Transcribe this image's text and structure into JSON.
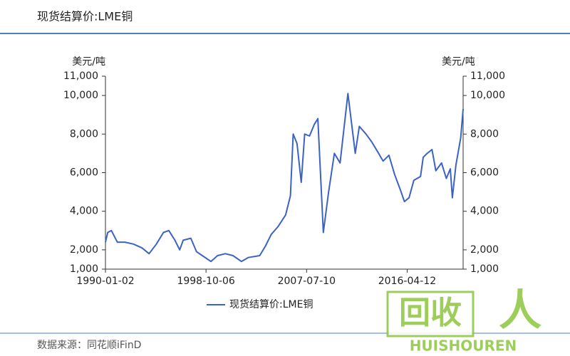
{
  "chart_data": {
    "type": "line",
    "title": "现货结算价:LME铜",
    "y_axis_label": "美元/吨",
    "y2_axis_label": "美元/吨",
    "source": "数据来源：同花顺iFinD",
    "watermark": {
      "mark": "回收",
      "figure": "人",
      "name": "HUISHOUREN"
    },
    "x": [
      "1990-01-02",
      "1990-03-15",
      "1990-07-10",
      "1991-01-15",
      "1991-09-10",
      "1992-06-10",
      "1993-03-10",
      "1993-10-20",
      "1994-06-10",
      "1995-01-20",
      "1995-07-10",
      "1996-01-20",
      "1996-06-20",
      "1996-10-10",
      "1997-06-10",
      "1997-12-10",
      "1998-06-10",
      "1999-03-10",
      "1999-10-10",
      "2000-06-10",
      "2001-02-10",
      "2001-11-05",
      "2002-06-10",
      "2003-06-10",
      "2003-12-10",
      "2004-06-10",
      "2005-01-10",
      "2005-09-10",
      "2006-02-10",
      "2006-05-10",
      "2006-09-10",
      "2007-01-20",
      "2007-05-10",
      "2007-10-10",
      "2008-03-10",
      "2008-07-02",
      "2008-12-24",
      "2009-06-10",
      "2009-12-10",
      "2010-06-10",
      "2011-02-14",
      "2011-10-04",
      "2012-02-10",
      "2012-09-10",
      "2013-03-10",
      "2013-09-10",
      "2014-03-10",
      "2014-09-10",
      "2015-03-10",
      "2015-09-10",
      "2016-01-15",
      "2016-06-10",
      "2016-11-10",
      "2017-06-10",
      "2017-09-05",
      "2018-01-10",
      "2018-06-10",
      "2018-10-10",
      "2019-04-10",
      "2019-09-10",
      "2020-01-15",
      "2020-03-20",
      "2020-07-10",
      "2020-12-10",
      "2021-02-25"
    ],
    "series": [
      {
        "name": "现货结算价:LME铜",
        "color": "#3b62c4",
        "values": [
          2400,
          2900,
          3000,
          2400,
          2400,
          2300,
          2100,
          1800,
          2300,
          2900,
          3000,
          2500,
          2000,
          2500,
          2600,
          1900,
          1700,
          1400,
          1700,
          1800,
          1700,
          1400,
          1600,
          1700,
          2200,
          2800,
          3200,
          3800,
          4800,
          8000,
          7500,
          5500,
          8000,
          7900,
          8500,
          8800,
          2900,
          5000,
          7000,
          6500,
          10100,
          7000,
          8400,
          8000,
          7600,
          7100,
          6600,
          6900,
          5900,
          5100,
          4500,
          4700,
          5600,
          5800,
          6800,
          7000,
          7200,
          6100,
          6500,
          5700,
          6200,
          4700,
          6400,
          7800,
          9300
        ]
      }
    ],
    "xlim": [
      "1990-01-02",
      "2021-02-25"
    ],
    "xticks": [
      "1990-01-02",
      "1998-10-06",
      "2007-07-10",
      "2016-04-12"
    ],
    "ylim": [
      1000,
      11000
    ],
    "yticks": [
      {
        "value": 1000,
        "label": "1,000"
      },
      {
        "value": 2000,
        "label": "2,000"
      },
      {
        "value": 4000,
        "label": "4,000"
      },
      {
        "value": 6000,
        "label": "6,000"
      },
      {
        "value": 8000,
        "label": "8,000"
      },
      {
        "value": 10000,
        "label": "10,000"
      },
      {
        "value": 11000,
        "label": "11,000"
      }
    ],
    "y2lim": [
      1000,
      11000
    ],
    "y2ticks": [
      {
        "value": 1000,
        "label": "1,000"
      },
      {
        "value": 2000,
        "label": "2,000"
      },
      {
        "value": 4000,
        "label": "4,000"
      },
      {
        "value": 6000,
        "label": "6,000"
      },
      {
        "value": 8000,
        "label": "8,000"
      },
      {
        "value": 10000,
        "label": "10,000"
      },
      {
        "value": 11000,
        "label": "11,000"
      }
    ]
  }
}
